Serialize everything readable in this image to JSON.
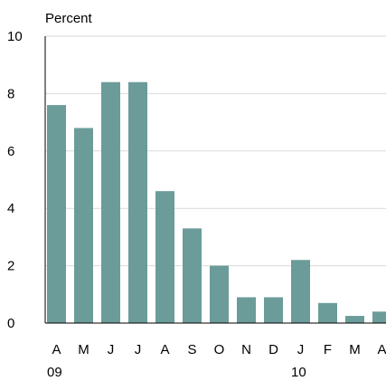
{
  "chart_data": {
    "type": "bar",
    "unit_label": "Percent",
    "categories": [
      "A",
      "M",
      "J",
      "J",
      "A",
      "S",
      "O",
      "N",
      "D",
      "J",
      "F",
      "M",
      "A"
    ],
    "values": [
      7.6,
      6.8,
      8.4,
      8.4,
      4.6,
      3.3,
      2.0,
      0.9,
      0.9,
      2.2,
      0.7,
      0.25,
      0.4
    ],
    "year_labels": [
      {
        "category_index": 0,
        "label": "09"
      },
      {
        "category_index": 9,
        "label": "10"
      }
    ],
    "yticks": [
      "0",
      "2",
      "4",
      "6",
      "8",
      "10"
    ],
    "ylim": [
      0,
      10
    ],
    "grid": true,
    "legend": "none",
    "bar_color": "#6b9c9a",
    "grid_color": "#d9d9d9",
    "axis_color": "#000000"
  }
}
